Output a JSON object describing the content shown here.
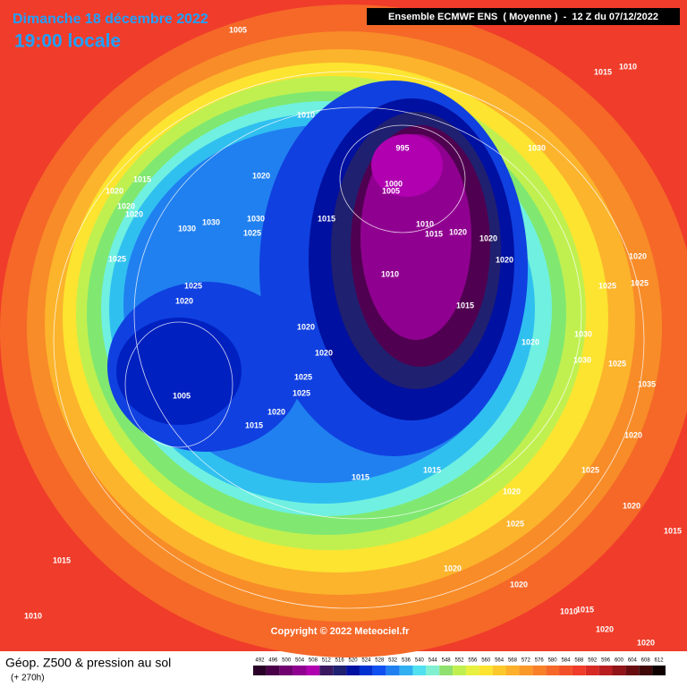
{
  "header": {
    "date": "Dimanche 18 décembre 2022",
    "time": "19:00 locale",
    "model": "Ensemble ECMWF ENS  ( Moyenne )  -  12 Z du 07/12/2022"
  },
  "map": {
    "isobar_labels": [
      "1005",
      "1015",
      "1010",
      "1020",
      "1020",
      "995",
      "1000",
      "1005",
      "1020",
      "1020",
      "1015",
      "1030",
      "1030",
      "1030",
      "1025",
      "1010",
      "1015",
      "1020",
      "1020",
      "1025",
      "1020",
      "1010",
      "1025",
      "1020",
      "1015",
      "1020",
      "1020",
      "1020",
      "1030",
      "1025",
      "1025",
      "1005",
      "1020",
      "1015",
      "1015",
      "1015",
      "1020",
      "1025",
      "1020",
      "1020",
      "1015",
      "1010",
      "1015",
      "1015",
      "1010",
      "1020",
      "1025",
      "1020",
      "1025",
      "1020",
      "1035",
      "1025",
      "1030",
      "1010",
      "1015",
      "1020",
      "1020",
      "1025",
      "1030"
    ],
    "copyright": "Copyright © 2022 Meteociel.fr"
  },
  "footer": {
    "title": "Géop. Z500 & pression au sol",
    "lead": "(+ 270h)"
  },
  "legend": {
    "values": [
      492,
      496,
      500,
      504,
      508,
      512,
      516,
      520,
      524,
      528,
      532,
      536,
      540,
      544,
      548,
      552,
      556,
      560,
      564,
      568,
      572,
      576,
      580,
      584,
      588,
      592,
      596,
      600,
      604,
      608,
      612
    ],
    "colors": [
      "#2a0028",
      "#4a0048",
      "#700070",
      "#900090",
      "#b000b0",
      "#3a1860",
      "#202070",
      "#0010a0",
      "#0030d0",
      "#1050f0",
      "#2080f0",
      "#30b0f0",
      "#50e0f0",
      "#80f0d0",
      "#90e070",
      "#c0f050",
      "#e8f040",
      "#fce430",
      "#fcc82c",
      "#fcb02c",
      "#fa9828",
      "#f88028",
      "#f56828",
      "#f25028",
      "#f03c2a",
      "#d82a24",
      "#b81e20",
      "#901418",
      "#680c10",
      "#400808",
      "#100000"
    ]
  }
}
